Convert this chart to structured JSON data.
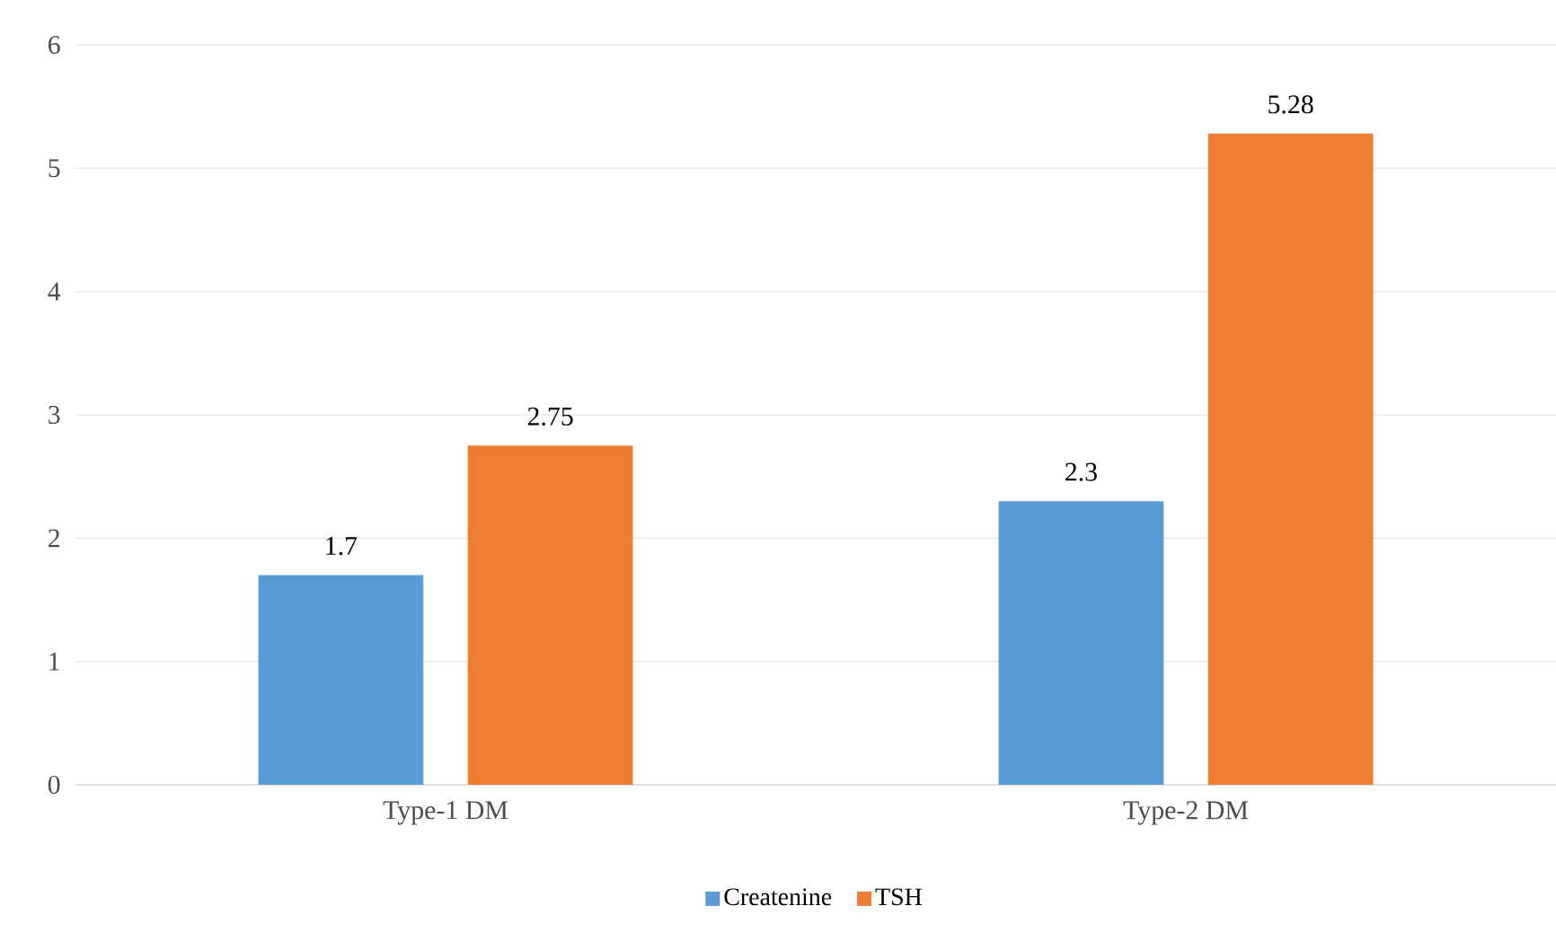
{
  "chart_data": {
    "type": "bar",
    "categories": [
      "Type-1 DM",
      "Type-2 DM"
    ],
    "series": [
      {
        "name": "Createnine",
        "color": "#5b9bd5",
        "values": [
          1.7,
          2.3
        ]
      },
      {
        "name": "TSH",
        "color": "#ed7d31",
        "values": [
          2.75,
          5.28
        ]
      }
    ],
    "ylim": [
      0,
      6
    ],
    "yticks": [
      0,
      1,
      2,
      3,
      4,
      5,
      6
    ],
    "grid": "y",
    "legend": "bottom",
    "data_labels": true
  }
}
